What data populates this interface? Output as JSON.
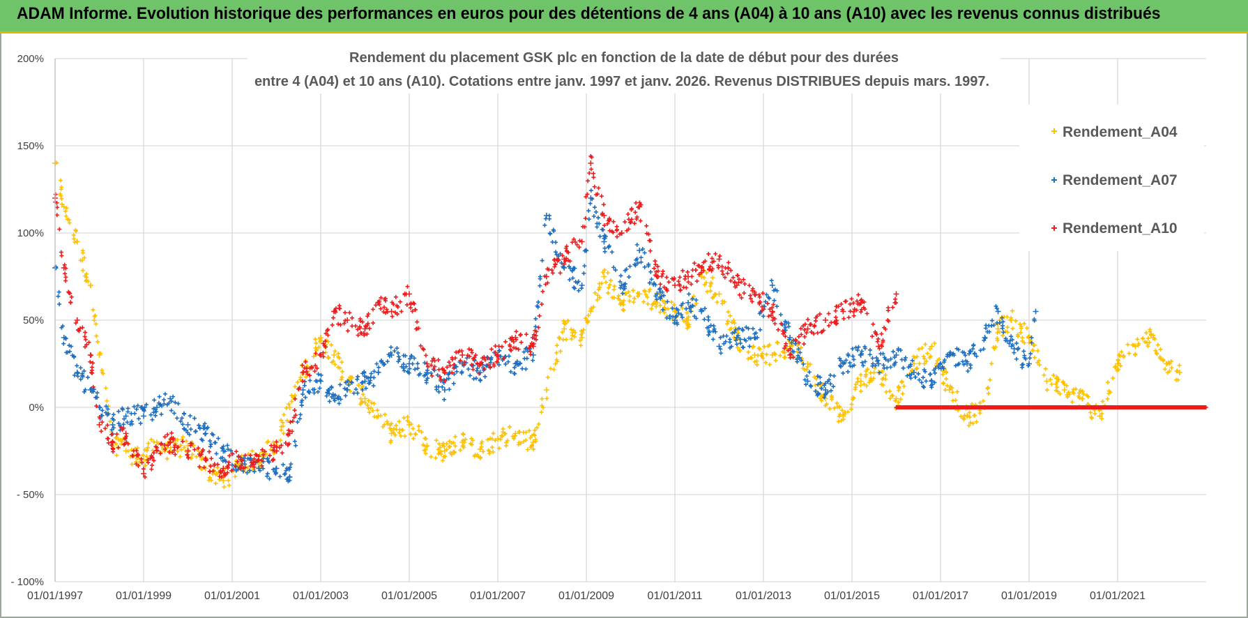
{
  "banner": {
    "title": "ADAM Informe. Evolution historique des performances en euros pour des détentions de 4 ans (A04) à 10 ans (A10) avec les revenus connus distribués"
  },
  "colors": {
    "banner_bg": "#6fc46a",
    "A04": "#ffc000",
    "A07": "#1f6fc0",
    "A10": "#ee1c1c",
    "grid": "#d9d9d9"
  },
  "chart_data": {
    "type": "scatter",
    "title_lines": [
      "Rendement du placement GSK plc en fonction de la date de début pour des durées",
      "entre 4 (A04) et 10 ans (A10).  Cotations entre janv. 1997 et janv. 2026.  Revenus DISTRIBUES depuis mars. 1997."
    ],
    "xlabel": "",
    "ylabel": "",
    "ylim": [
      -100,
      200
    ],
    "xlim": [
      1997.0,
      2023.0
    ],
    "yticks": [
      {
        "v": 200,
        "label": "200%"
      },
      {
        "v": 150,
        "label": "150%"
      },
      {
        "v": 100,
        "label": "100%"
      },
      {
        "v": 50,
        "label": "50%"
      },
      {
        "v": 0,
        "label": "0%"
      },
      {
        "v": -50,
        "label": "- 50%"
      },
      {
        "v": -100,
        "label": "- 100%"
      }
    ],
    "xticks": [
      {
        "v": 1997,
        "label": "01/01/1997"
      },
      {
        "v": 1999,
        "label": "01/01/1999"
      },
      {
        "v": 2001,
        "label": "01/01/2001"
      },
      {
        "v": 2003,
        "label": "01/01/2003"
      },
      {
        "v": 2005,
        "label": "01/01/2005"
      },
      {
        "v": 2007,
        "label": "01/01/2007"
      },
      {
        "v": 2009,
        "label": "01/01/2009"
      },
      {
        "v": 2011,
        "label": "01/01/2011"
      },
      {
        "v": 2013,
        "label": "01/01/2013"
      },
      {
        "v": 2015,
        "label": "01/01/2015"
      },
      {
        "v": 2017,
        "label": "01/01/2017"
      },
      {
        "v": 2019,
        "label": "01/01/2019"
      },
      {
        "v": 2021,
        "label": "01/01/2021"
      }
    ],
    "grid": true,
    "legend_position": "top-right",
    "series": [
      {
        "name": "Rendement_A04",
        "color": "#ffc000",
        "x": [
          1997.0,
          1997.2,
          1997.5,
          1997.8,
          1998.0,
          1998.3,
          1998.6,
          1999.0,
          1999.3,
          1999.6,
          2000.0,
          2000.4,
          2000.8,
          2001.2,
          2001.6,
          2002.0,
          2002.3,
          2002.6,
          2003.0,
          2003.3,
          2003.6,
          2004.0,
          2004.3,
          2004.6,
          2005.0,
          2005.4,
          2005.8,
          2006.2,
          2006.6,
          2007.0,
          2007.4,
          2007.8,
          2008.1,
          2008.5,
          2008.9,
          2009.1,
          2009.4,
          2009.8,
          2010.2,
          2010.6,
          2011.0,
          2011.3,
          2011.6,
          2012.0,
          2012.4,
          2012.8,
          2013.2,
          2013.6,
          2014.0,
          2014.4,
          2014.8,
          2015.2,
          2015.6,
          2016.0,
          2016.4,
          2016.8,
          2017.2,
          2017.6,
          2018.0,
          2018.3,
          2018.6,
          2019.0,
          2019.4,
          2019.8,
          2020.2,
          2020.6,
          2021.0,
          2021.4,
          2021.8,
          2022.1,
          2022.4
        ],
        "y": [
          140,
          115,
          95,
          70,
          30,
          -20,
          -25,
          -30,
          -20,
          -25,
          -22,
          -35,
          -42,
          -32,
          -30,
          -20,
          0,
          20,
          40,
          30,
          15,
          5,
          -5,
          -15,
          -10,
          -22,
          -25,
          -20,
          -24,
          -18,
          -15,
          -20,
          10,
          45,
          40,
          55,
          75,
          60,
          65,
          60,
          55,
          50,
          75,
          65,
          40,
          30,
          30,
          35,
          25,
          5,
          -5,
          15,
          20,
          5,
          25,
          35,
          10,
          -5,
          0,
          45,
          50,
          40,
          15,
          10,
          5,
          -5,
          25,
          35,
          40,
          25,
          20
        ]
      },
      {
        "name": "Rendement_A07",
        "color": "#1f6fc0",
        "x": [
          1997.0,
          1997.2,
          1997.5,
          1997.8,
          1998.0,
          1998.3,
          1998.6,
          1999.0,
          1999.3,
          1999.6,
          2000.0,
          2000.4,
          2000.8,
          2001.2,
          2001.6,
          2002.0,
          2002.3,
          2002.6,
          2003.0,
          2003.3,
          2003.6,
          2004.0,
          2004.3,
          2004.6,
          2005.0,
          2005.4,
          2005.8,
          2006.2,
          2006.6,
          2007.0,
          2007.4,
          2007.8,
          2008.1,
          2008.5,
          2008.9,
          2009.1,
          2009.4,
          2009.8,
          2010.2,
          2010.6,
          2011.0,
          2011.3,
          2011.6,
          2012.0,
          2012.4,
          2012.8,
          2013.2,
          2013.6,
          2014.0,
          2014.4,
          2014.8,
          2015.2,
          2015.6,
          2016.0,
          2016.4,
          2016.8,
          2017.2,
          2017.6,
          2018.0,
          2018.3,
          2018.6,
          2019.0,
          2019.15
        ],
        "y": [
          80,
          40,
          20,
          10,
          0,
          -10,
          -5,
          -5,
          0,
          5,
          -10,
          -15,
          -25,
          -35,
          -35,
          -35,
          -40,
          10,
          15,
          5,
          10,
          15,
          20,
          30,
          25,
          20,
          10,
          25,
          20,
          30,
          25,
          30,
          110,
          80,
          70,
          120,
          95,
          70,
          90,
          65,
          50,
          60,
          55,
          35,
          40,
          40,
          70,
          40,
          15,
          10,
          25,
          30,
          25,
          30,
          20,
          15,
          30,
          25,
          40,
          55,
          35,
          25,
          55
        ]
      },
      {
        "name": "Rendement_A10",
        "color": "#ee1c1c",
        "x": [
          1997.0,
          1997.2,
          1997.5,
          1997.8,
          1998.0,
          1998.3,
          1998.6,
          1999.0,
          1999.3,
          1999.6,
          2000.0,
          2000.4,
          2000.8,
          2001.2,
          2001.6,
          2002.0,
          2002.3,
          2002.6,
          2003.0,
          2003.3,
          2003.6,
          2004.0,
          2004.3,
          2004.6,
          2005.0,
          2005.4,
          2005.8,
          2006.2,
          2006.6,
          2007.0,
          2007.4,
          2007.8,
          2008.1,
          2008.5,
          2008.9,
          2009.1,
          2009.4,
          2009.8,
          2010.2,
          2010.6,
          2011.0,
          2011.3,
          2011.6,
          2012.0,
          2012.4,
          2012.8,
          2013.2,
          2013.6,
          2014.0,
          2014.4,
          2014.8,
          2015.2,
          2015.6,
          2016.0
        ],
        "y": [
          120,
          80,
          50,
          30,
          -10,
          -20,
          -15,
          -38,
          -25,
          -20,
          -25,
          -30,
          -35,
          -30,
          -30,
          -25,
          -15,
          20,
          30,
          55,
          50,
          45,
          60,
          55,
          65,
          25,
          20,
          30,
          25,
          30,
          40,
          35,
          75,
          85,
          95,
          140,
          110,
          100,
          115,
          75,
          70,
          75,
          80,
          85,
          70,
          65,
          55,
          30,
          45,
          50,
          55,
          60,
          35,
          65
        ]
      }
    ],
    "flat_segment": {
      "series": "Rendement_A10",
      "x_start": 2016.0,
      "x_end": 2023.0,
      "y": 0
    }
  }
}
